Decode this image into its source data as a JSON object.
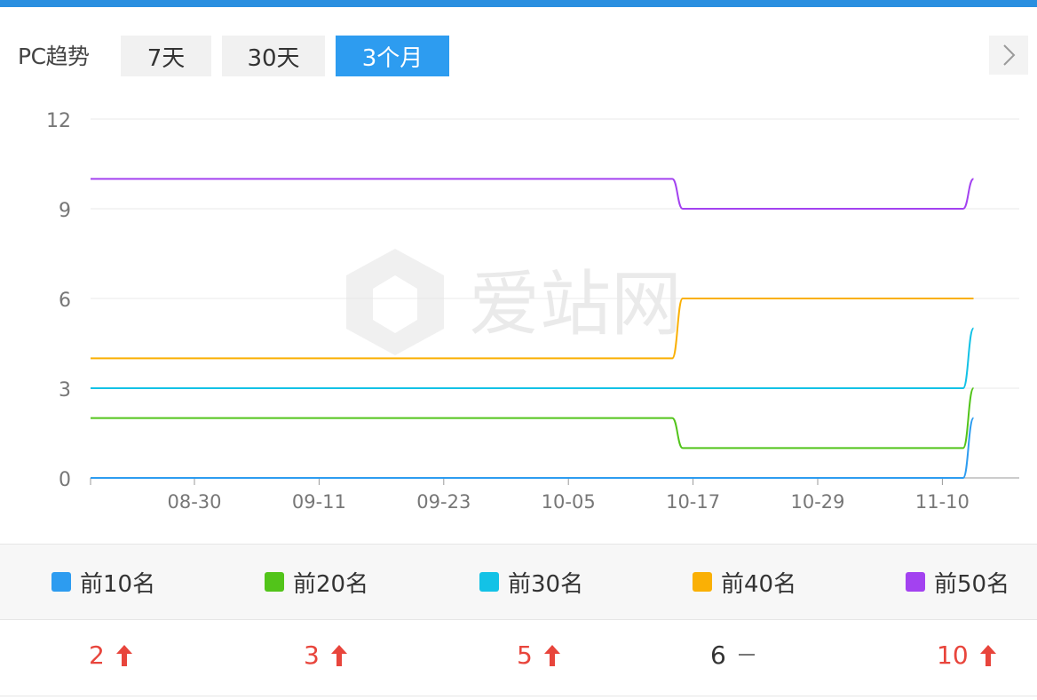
{
  "toolbar": {
    "title": "PC趋势",
    "ranges": [
      {
        "label": "7天",
        "active": false
      },
      {
        "label": "30天",
        "active": false
      },
      {
        "label": "3个月",
        "active": true
      }
    ]
  },
  "watermark": "爱站网",
  "chart_data": {
    "type": "line",
    "title": "",
    "xlabel": "",
    "ylabel": "",
    "ylim": [
      0,
      12
    ],
    "y_ticks": [
      0,
      3,
      6,
      9,
      12
    ],
    "x_tick_labels": [
      "08-30",
      "09-11",
      "09-23",
      "10-05",
      "10-17",
      "10-29",
      "11-10"
    ],
    "x_range": [
      "08-20",
      "11-13"
    ],
    "grid": true,
    "legend_position": "bottom",
    "series": [
      {
        "name": "前10名",
        "color": "#2d9cf0",
        "points": [
          [
            "08-20",
            0
          ],
          [
            "11-12",
            0
          ],
          [
            "11-13",
            2
          ]
        ]
      },
      {
        "name": "前20名",
        "color": "#52c41a",
        "points": [
          [
            "08-20",
            2
          ],
          [
            "10-15",
            2
          ],
          [
            "10-16",
            1
          ],
          [
            "11-12",
            1
          ],
          [
            "11-13",
            3
          ]
        ]
      },
      {
        "name": "前30名",
        "color": "#13c2e6",
        "points": [
          [
            "08-20",
            3
          ],
          [
            "11-12",
            3
          ],
          [
            "11-13",
            5
          ]
        ]
      },
      {
        "name": "前40名",
        "color": "#fab005",
        "points": [
          [
            "08-20",
            4
          ],
          [
            "10-15",
            4
          ],
          [
            "10-16",
            6
          ],
          [
            "11-13",
            6
          ]
        ]
      },
      {
        "name": "前50名",
        "color": "#a342f0",
        "points": [
          [
            "08-20",
            10
          ],
          [
            "10-15",
            10
          ],
          [
            "10-16",
            9
          ],
          [
            "11-12",
            9
          ],
          [
            "11-13",
            10
          ]
        ]
      }
    ]
  },
  "legend": [
    {
      "label": "前10名",
      "color": "#2d9cf0"
    },
    {
      "label": "前20名",
      "color": "#52c41a"
    },
    {
      "label": "前30名",
      "color": "#13c2e6"
    },
    {
      "label": "前40名",
      "color": "#fab005"
    },
    {
      "label": "前50名",
      "color": "#a342f0"
    }
  ],
  "counts": [
    {
      "value": "2",
      "trend": "up",
      "trend_icon": "arrow-up-icon"
    },
    {
      "value": "3",
      "trend": "up",
      "trend_icon": "arrow-up-icon"
    },
    {
      "value": "5",
      "trend": "up",
      "trend_icon": "arrow-up-icon"
    },
    {
      "value": "6",
      "trend": "flat",
      "trend_icon": "dash-icon"
    },
    {
      "value": "10",
      "trend": "up",
      "trend_icon": "arrow-up-icon"
    }
  ],
  "colors": {
    "accent": "#2d9cf0",
    "up": "#e8453c",
    "top_border": "#2a8fe0"
  }
}
